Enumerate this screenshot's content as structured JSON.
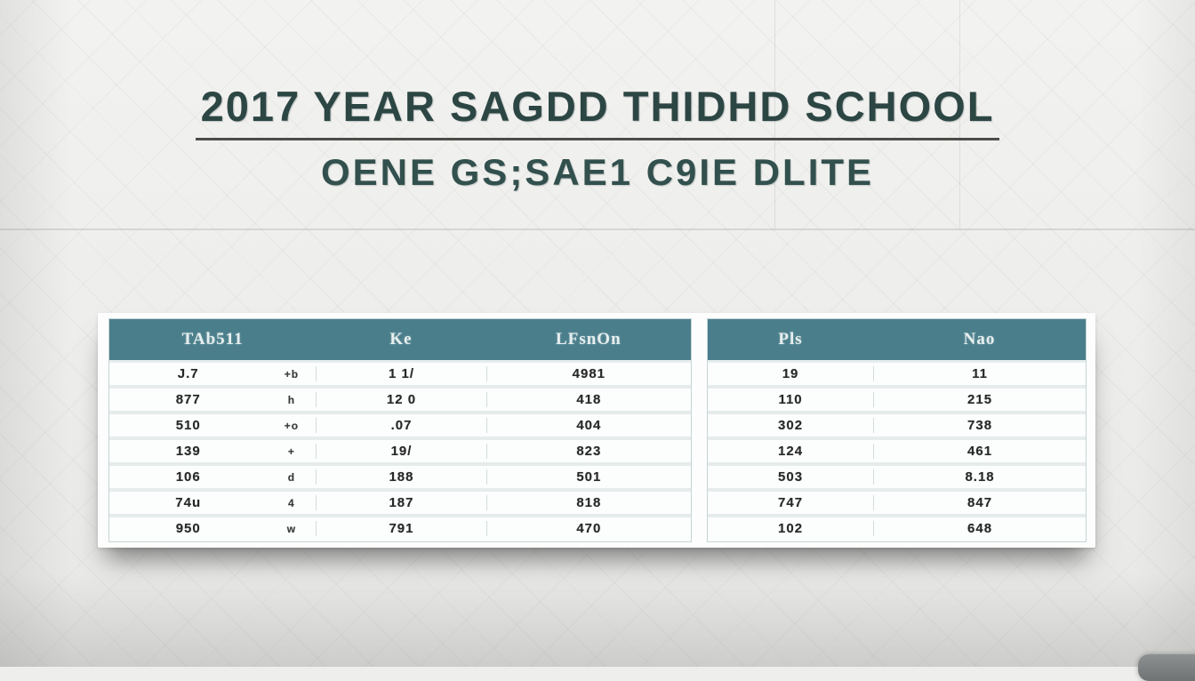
{
  "title": {
    "line1": "2017 YEAR SAGDD THIDHD SCHOOL",
    "line2": "OENE GS;SAE1 C9IE DLITE"
  },
  "colors": {
    "header_teal": "#4a7e8b",
    "title_text": "#2c4644",
    "card_bg": "#fdfdfd",
    "wall_bg": "#eeeeec"
  },
  "left_table": {
    "headers": [
      "TAb511",
      "Ke",
      "LFsnOn"
    ],
    "rows": [
      {
        "c1": "J.7",
        "sym": "+b",
        "c2": "1 1/",
        "c3": "4981"
      },
      {
        "c1": "877",
        "sym": "h",
        "c2": "12 0",
        "c3": "418"
      },
      {
        "c1": "510",
        "sym": "+o",
        "c2": ".07",
        "c3": "404"
      },
      {
        "c1": "139",
        "sym": "+",
        "c2": "19/",
        "c3": "823"
      },
      {
        "c1": "106",
        "sym": "d",
        "c2": "188",
        "c3": "501"
      },
      {
        "c1": "74u",
        "sym": "4",
        "c2": "187",
        "c3": "818"
      },
      {
        "c1": "950",
        "sym": "w",
        "c2": "791",
        "c3": "470"
      }
    ]
  },
  "right_table": {
    "headers": [
      "Pls",
      "Nao"
    ],
    "rows": [
      {
        "c1": "19",
        "c2": "11"
      },
      {
        "c1": "110",
        "c2": "215"
      },
      {
        "c1": "302",
        "c2": "738"
      },
      {
        "c1": "124",
        "c2": "461"
      },
      {
        "c1": "503",
        "c2": "8.18"
      },
      {
        "c1": "747",
        "c2": "847"
      },
      {
        "c1": "102",
        "c2": "648"
      }
    ]
  }
}
